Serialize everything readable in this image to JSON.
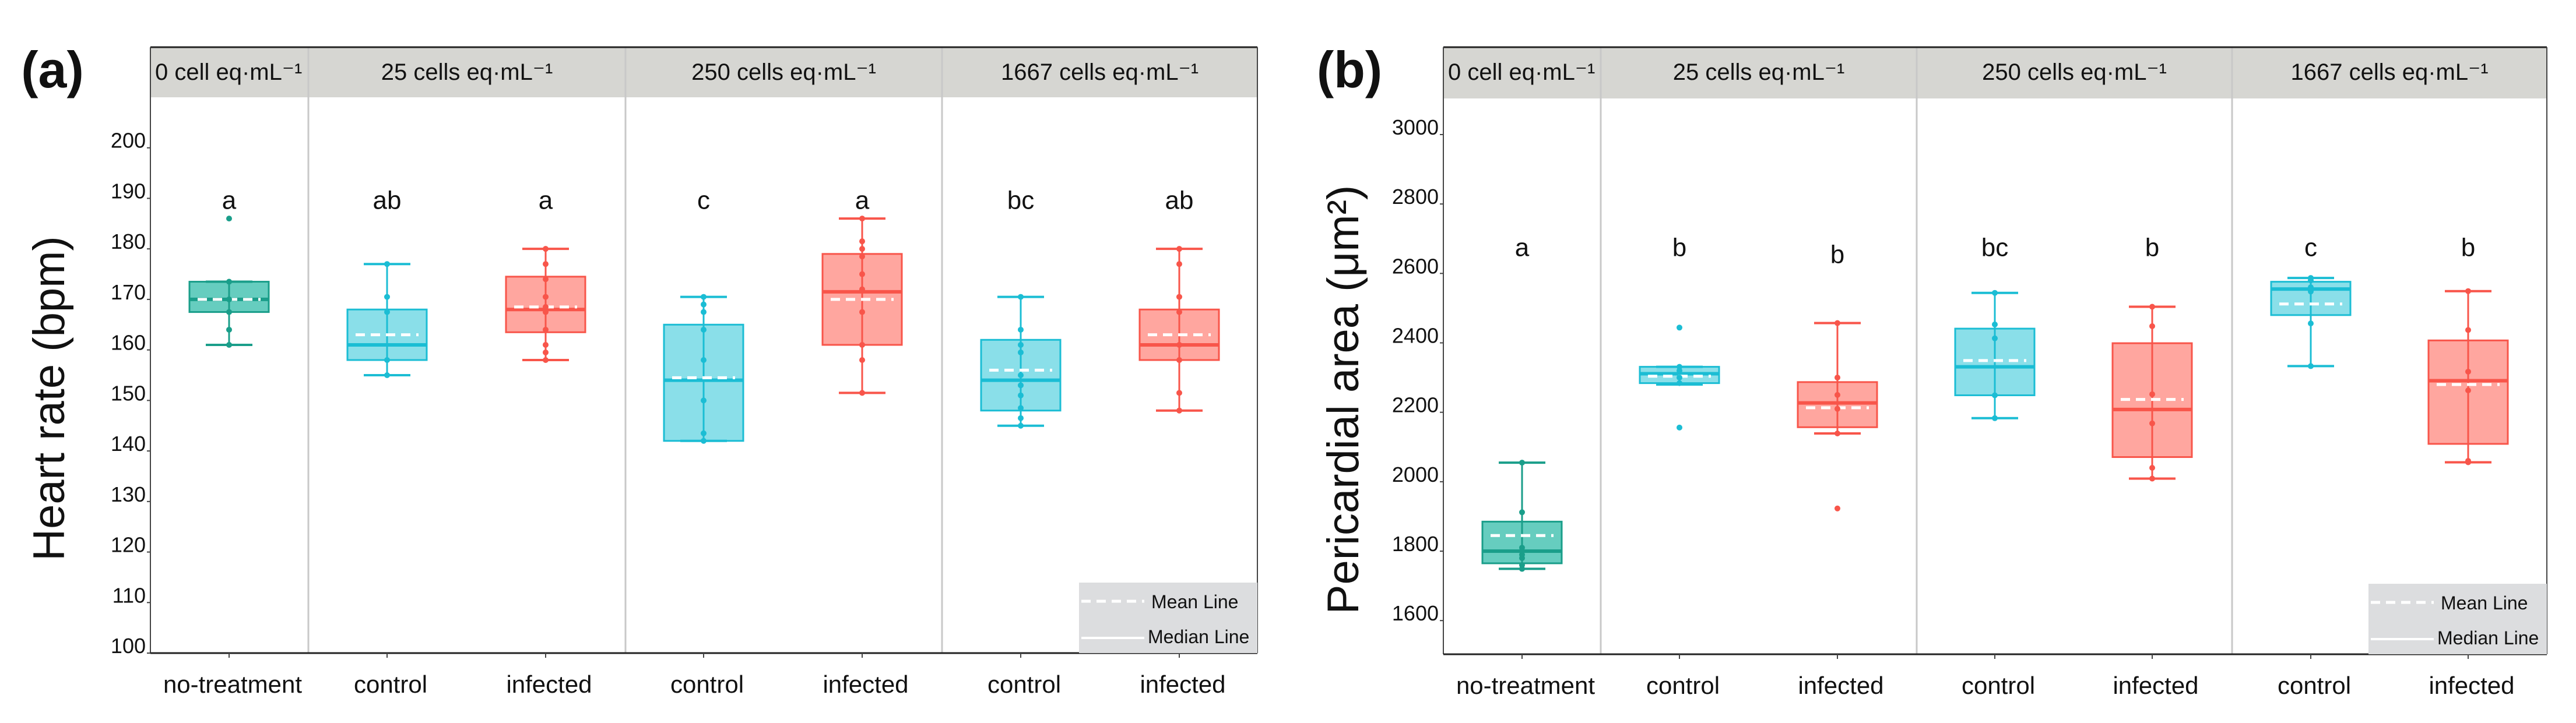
{
  "chart_data": [
    {
      "type": "box",
      "panel_label": "(a)",
      "ylabel": "Heart rate (bpm)",
      "ylim": [
        100,
        210
      ],
      "yticks": [
        100,
        110,
        120,
        130,
        140,
        150,
        160,
        170,
        180,
        190,
        200
      ],
      "groups": [
        {
          "label": "0 cell eq·mL⁻¹",
          "categories": [
            0
          ]
        },
        {
          "label": "25 cells eq·mL⁻¹",
          "categories": [
            1,
            2
          ]
        },
        {
          "label": "250 cells eq·mL⁻¹",
          "categories": [
            3,
            4
          ]
        },
        {
          "label": "1667 cells eq·mL⁻¹",
          "categories": [
            5,
            6
          ]
        }
      ],
      "categories": [
        "no-treatment",
        "control",
        "infected",
        "control",
        "infected",
        "control",
        "infected"
      ],
      "series_type": [
        "notreat",
        "control",
        "infected",
        "control",
        "infected",
        "control",
        "infected"
      ],
      "letters": [
        "a",
        "ab",
        "a",
        "c",
        "a",
        "bc",
        "ab"
      ],
      "letter_y": [
        190,
        190,
        190,
        190,
        190,
        190,
        190
      ],
      "boxes": [
        {
          "whisker_low": 161,
          "q1": 167.5,
          "median": 170,
          "q3": 173.5,
          "whisker_high": 173.5,
          "mean": 170,
          "points": [
            186,
            173.5,
            170,
            167.5,
            164,
            161
          ]
        },
        {
          "whisker_low": 155,
          "q1": 158,
          "median": 161,
          "q3": 168,
          "whisker_high": 177,
          "mean": 163,
          "points": [
            177,
            170.5,
            167.5,
            158,
            155
          ]
        },
        {
          "whisker_low": 158,
          "q1": 163.5,
          "median": 168,
          "q3": 174.5,
          "whisker_high": 180,
          "mean": 168.5,
          "points": [
            180,
            177,
            174,
            170.5,
            168.5,
            167.5,
            164,
            161,
            159.5,
            158
          ]
        },
        {
          "whisker_low": 142,
          "q1": 142,
          "median": 154,
          "q3": 165,
          "whisker_high": 170.5,
          "mean": 154.5,
          "points": [
            170.5,
            169,
            167.5,
            164,
            158,
            150,
            143.5,
            142
          ]
        },
        {
          "whisker_low": 151.5,
          "q1": 161,
          "median": 171.5,
          "q3": 179,
          "whisker_high": 186,
          "mean": 170,
          "points": [
            186,
            181.5,
            180,
            178.5,
            175,
            172,
            167.5,
            161,
            158,
            151.5
          ]
        },
        {
          "whisker_low": 145,
          "q1": 148,
          "median": 154,
          "q3": 162,
          "whisker_high": 170.5,
          "mean": 156,
          "points": [
            170.5,
            164,
            161,
            159.5,
            155,
            153,
            151,
            148.5,
            146.5,
            145
          ]
        },
        {
          "whisker_low": 148,
          "q1": 158,
          "median": 161,
          "q3": 168,
          "whisker_high": 180,
          "mean": 163,
          "points": [
            180,
            177,
            170.5,
            167.5,
            161,
            158,
            151.5,
            148
          ]
        }
      ],
      "legend": {
        "mean": "Mean Line",
        "median": "Median Line",
        "placement": "bottom-right"
      }
    },
    {
      "type": "box",
      "panel_label": "(b)",
      "ylabel": "Pericardial area (μm²)",
      "ylim": [
        1503,
        3104
      ],
      "yticks": [
        1600,
        1800,
        2000,
        2200,
        2400,
        2600,
        2800,
        3000
      ],
      "groups": [
        {
          "label": "0 cell eq·mL⁻¹",
          "categories": [
            0
          ]
        },
        {
          "label": "25 cells eq·mL⁻¹",
          "categories": [
            1,
            2
          ]
        },
        {
          "label": "250 cells eq·mL⁻¹",
          "categories": [
            3,
            4
          ]
        },
        {
          "label": "1667 cells eq·mL⁻¹",
          "categories": [
            5,
            6
          ]
        }
      ],
      "categories": [
        "no-treatment",
        "control",
        "infected",
        "control",
        "infected",
        "control",
        "infected"
      ],
      "series_type": [
        "notreat",
        "control",
        "infected",
        "control",
        "infected",
        "control",
        "infected"
      ],
      "letters": [
        "a",
        "b",
        "b",
        "bc",
        "b",
        "c",
        "b"
      ],
      "letter_y": [
        2680,
        2680,
        2660,
        2680,
        2680,
        2680,
        2680
      ],
      "boxes": [
        {
          "whisker_low": 1749,
          "q1": 1765,
          "median": 1800,
          "q3": 1885,
          "whisker_high": 2055,
          "mean": 1845,
          "points": [
            2055,
            1912,
            1810,
            1790,
            1780,
            1760,
            1749
          ]
        },
        {
          "whisker_low": 2280,
          "q1": 2284,
          "median": 2311,
          "q3": 2331,
          "whisker_high": 2331,
          "mean": 2304,
          "points": [
            2444,
            2331,
            2320,
            2300,
            2284,
            2156
          ]
        },
        {
          "whisker_low": 2139,
          "q1": 2157,
          "median": 2227,
          "q3": 2287,
          "whisker_high": 2457,
          "mean": 2213,
          "points": [
            2457,
            2300,
            2250,
            2210,
            2139,
            1923
          ]
        },
        {
          "whisker_low": 2183,
          "q1": 2249,
          "median": 2331,
          "q3": 2441,
          "whisker_high": 2544,
          "mean": 2349,
          "points": [
            2544,
            2453,
            2413,
            2249,
            2183
          ]
        },
        {
          "whisker_low": 2009,
          "q1": 2071,
          "median": 2208,
          "q3": 2399,
          "whisker_high": 2504,
          "mean": 2237,
          "points": [
            2504,
            2448,
            2252,
            2168,
            2040,
            2009
          ]
        },
        {
          "whisker_low": 2333,
          "q1": 2480,
          "median": 2555,
          "q3": 2576,
          "whisker_high": 2587,
          "mean": 2512,
          "points": [
            2587,
            2580,
            2560,
            2548,
            2456,
            2333
          ]
        },
        {
          "whisker_low": 2056,
          "q1": 2109,
          "median": 2291,
          "q3": 2407,
          "whisker_high": 2549,
          "mean": 2280,
          "points": [
            2549,
            2437,
            2317,
            2263,
            2060,
            2056
          ]
        }
      ],
      "legend": {
        "mean": "Mean Line",
        "median": "Median Line",
        "placement": "bottom-right"
      }
    }
  ],
  "colors": {
    "notreat": {
      "fill": "#66CDBF",
      "stroke": "#1A9E8A"
    },
    "control": {
      "fill": "#8ADFE9",
      "stroke": "#1BBDD4"
    },
    "infected": {
      "fill": "#FFA69F",
      "stroke": "#F8554A"
    },
    "header": "#D6D6D2",
    "legend_bg": "#DCDDDF",
    "separator": "#C8C8C8"
  }
}
